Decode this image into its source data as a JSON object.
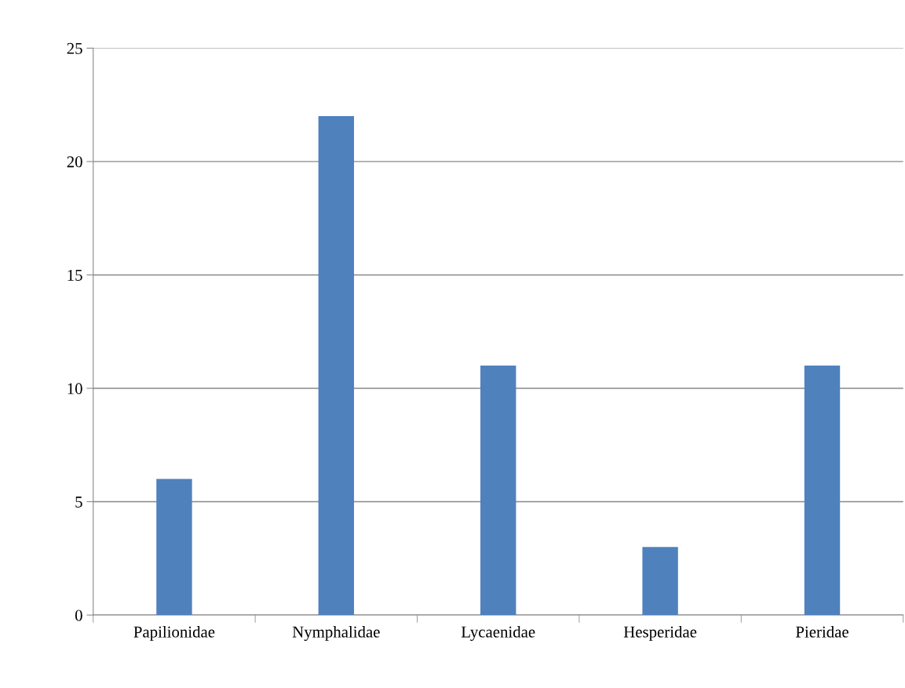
{
  "chart_data": {
    "type": "bar",
    "categories": [
      "Papilionidae",
      "Nymphalidae",
      "Lycaenidae",
      "Hesperidae",
      "Pieridae"
    ],
    "values": [
      6,
      22,
      11,
      3,
      11
    ],
    "color": "#4f81bd",
    "ylim": [
      0,
      25
    ],
    "yticks": [
      0,
      5,
      10,
      15,
      20,
      25
    ],
    "grid": "y",
    "legend": false
  }
}
